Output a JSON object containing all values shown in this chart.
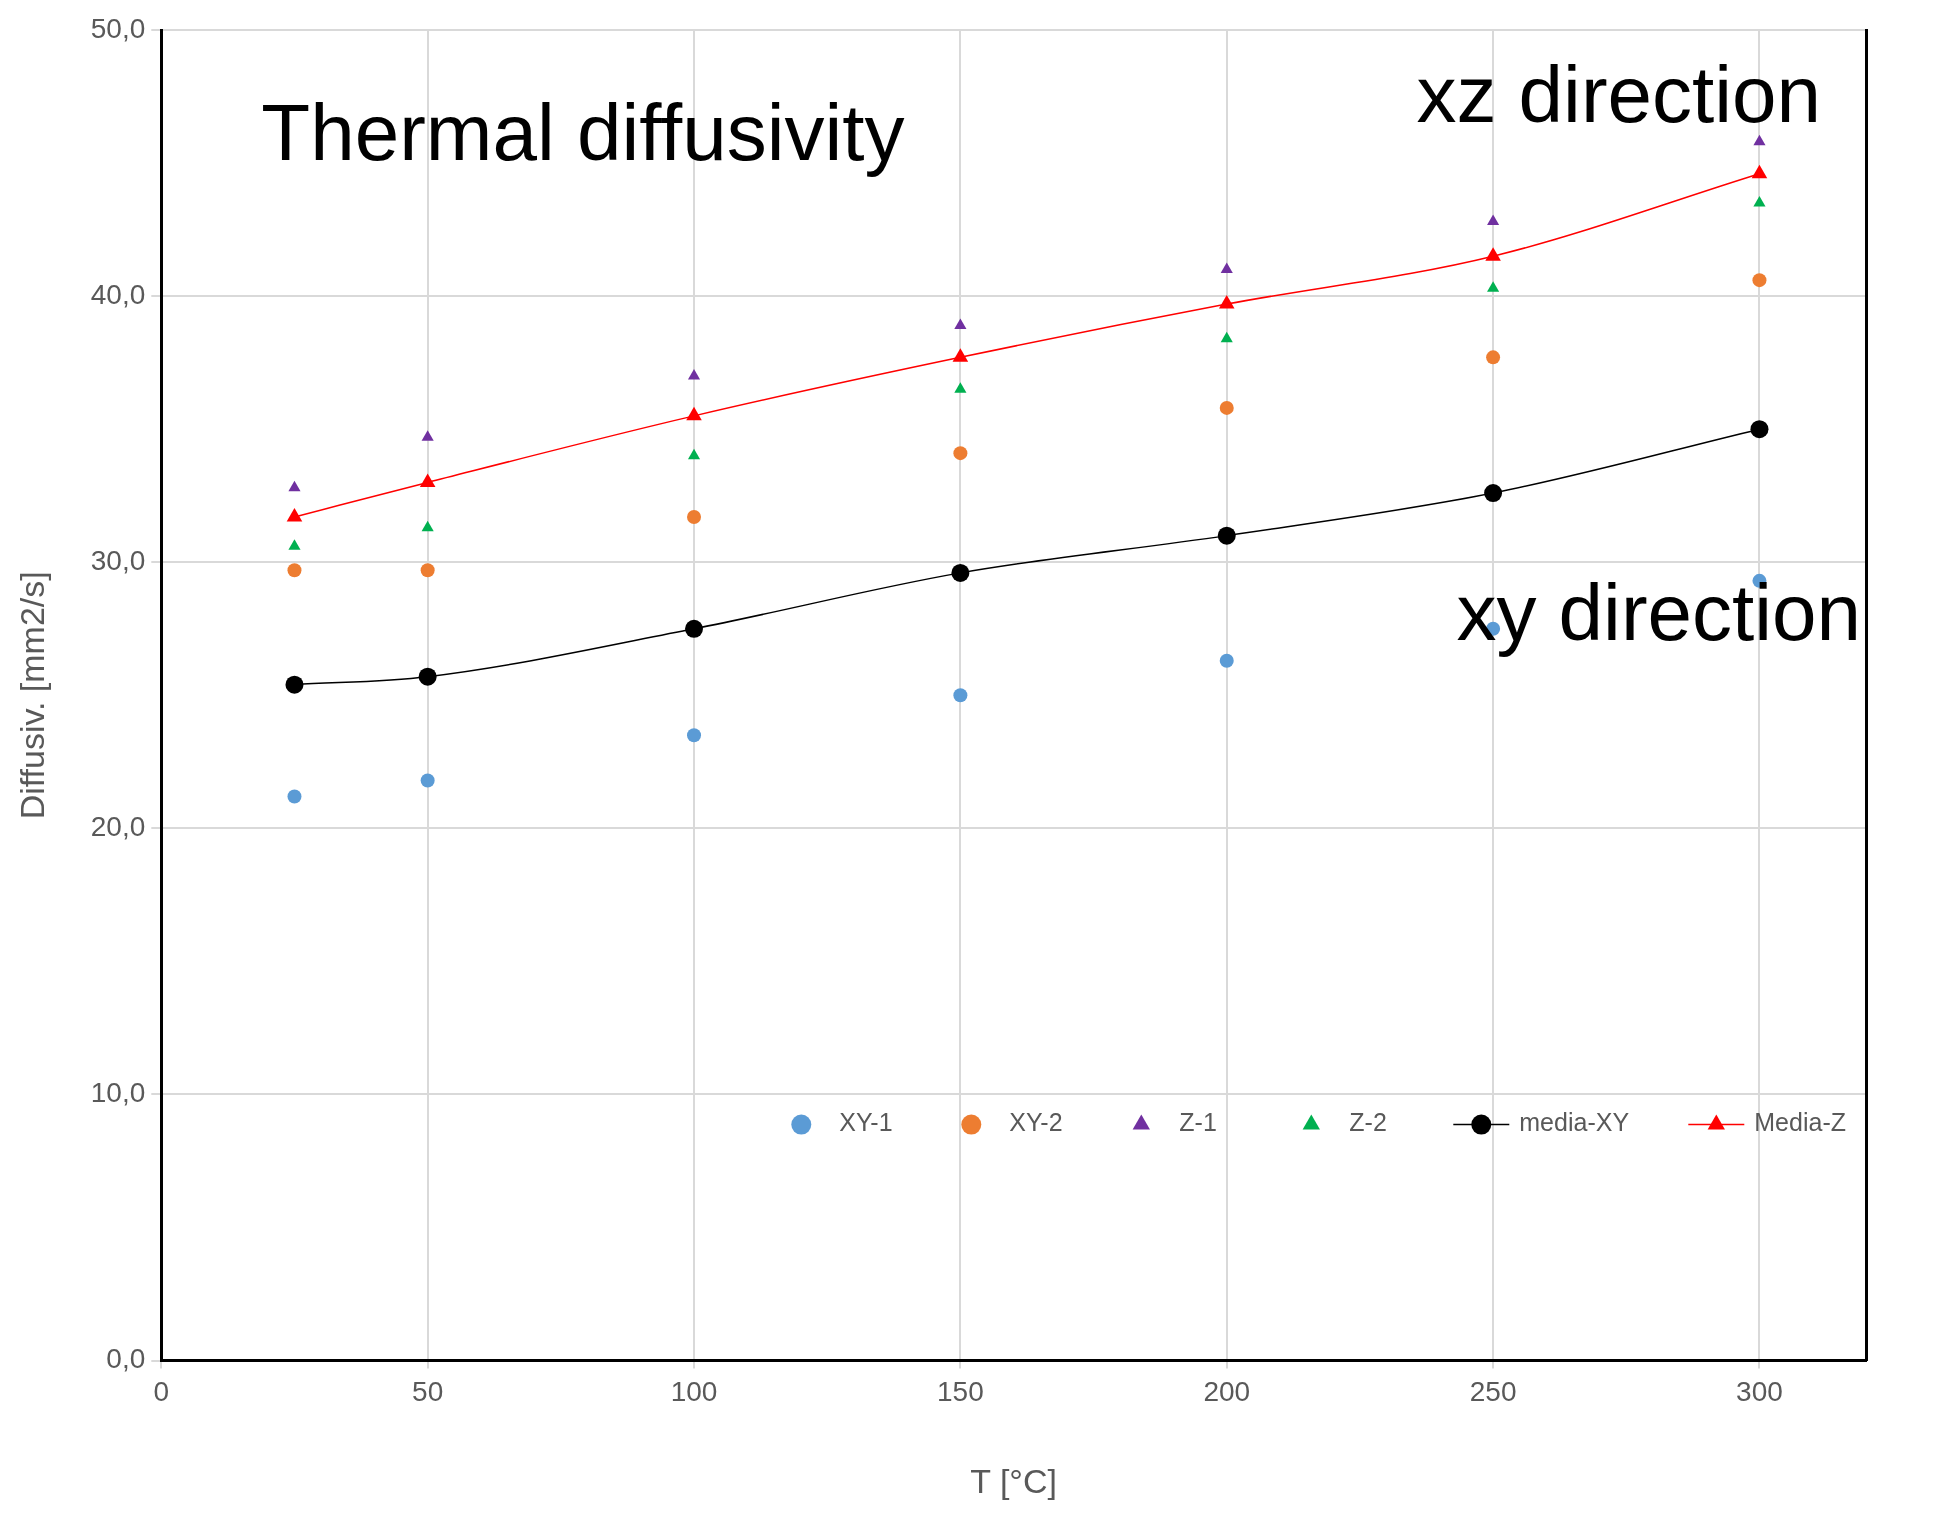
{
  "chart_data": {
    "type": "scatter",
    "title": "Thermal diffusivity",
    "xlabel": "T [°C]",
    "ylabel": "Diffusiv. [mm2/s]",
    "annotations": [
      "xz direction",
      "xy direction"
    ],
    "x": [
      25,
      50,
      100,
      150,
      200,
      250,
      300
    ],
    "series": [
      {
        "name": "XY-1",
        "color": "#5b9bd5",
        "marker": "circle",
        "values": [
          21.2,
          21.8,
          23.5,
          25.0,
          26.3,
          27.5,
          29.3
        ]
      },
      {
        "name": "XY-2",
        "color": "#ed7d31",
        "marker": "circle",
        "values": [
          29.7,
          29.7,
          31.7,
          34.1,
          35.8,
          37.7,
          40.6
        ]
      },
      {
        "name": "Z-1",
        "color": "#7030a0",
        "marker": "triangle",
        "values": [
          32.8,
          34.7,
          37.0,
          38.9,
          41.0,
          42.8,
          45.8
        ]
      },
      {
        "name": "Z-2",
        "color": "#00b050",
        "marker": "triangle",
        "values": [
          30.6,
          31.3,
          34.0,
          36.5,
          38.4,
          40.3,
          43.5
        ]
      },
      {
        "name": "media-XY",
        "type": "line",
        "color": "#000000",
        "marker": "circle",
        "values": [
          25.4,
          25.7,
          27.5,
          29.6,
          31.0,
          32.6,
          35.0
        ]
      },
      {
        "name": "Media-Z",
        "type": "line",
        "color": "#ff0000",
        "marker": "triangle",
        "values": [
          31.7,
          33.0,
          35.5,
          37.7,
          39.7,
          41.5,
          44.6
        ]
      }
    ],
    "xlim": [
      0,
      320
    ],
    "xticks": [
      0,
      50,
      100,
      150,
      200,
      250,
      300
    ],
    "ylim": [
      0,
      50
    ],
    "yticks": [
      {
        "value": 0,
        "label": "0,0"
      },
      {
        "value": 10,
        "label": "10,0"
      },
      {
        "value": 20,
        "label": "20,0"
      },
      {
        "value": 30,
        "label": "30,0"
      },
      {
        "value": 40,
        "label": "40,0"
      },
      {
        "value": 50,
        "label": "50,0"
      }
    ],
    "grid": true,
    "legend": "bottom right"
  }
}
